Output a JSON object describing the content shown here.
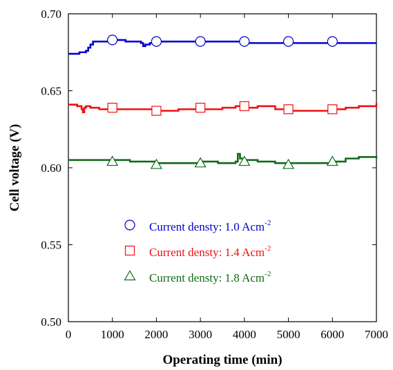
{
  "chart_data": {
    "type": "line",
    "title": "",
    "xlabel": "Operating time (min)",
    "ylabel": "Cell voltage (V)",
    "xlim": [
      0,
      7000
    ],
    "ylim": [
      0.5,
      0.7
    ],
    "xticks": [
      0,
      1000,
      2000,
      3000,
      4000,
      5000,
      6000,
      7000
    ],
    "xtick_labels": [
      "0",
      "1000",
      "2000",
      "3000",
      "4000",
      "5000",
      "6000",
      "7000"
    ],
    "yticks": [
      0.5,
      0.55,
      0.6,
      0.65,
      0.7
    ],
    "ytick_labels": [
      "0.50",
      "0.55",
      "0.60",
      "0.65",
      "0.70"
    ],
    "grid": false,
    "legend_position": "center-left",
    "series": [
      {
        "name": "Current densty: 1.0 Acm",
        "name_sup": "-2",
        "color": "#0000cc",
        "marker": "circle",
        "x": [
          0,
          250,
          400,
          450,
          500,
          560,
          700,
          1000,
          1300,
          1650,
          1700,
          1750,
          1850,
          2000,
          2500,
          3000,
          3500,
          4000,
          4500,
          5000,
          5500,
          6000,
          6500,
          7000
        ],
        "y": [
          0.674,
          0.675,
          0.676,
          0.678,
          0.68,
          0.682,
          0.682,
          0.683,
          0.682,
          0.681,
          0.679,
          0.68,
          0.681,
          0.682,
          0.682,
          0.682,
          0.682,
          0.681,
          0.681,
          0.681,
          0.681,
          0.681,
          0.681,
          0.681
        ],
        "marker_x": [
          1000,
          2000,
          3000,
          4000,
          5000,
          6000
        ],
        "marker_y": [
          0.683,
          0.682,
          0.682,
          0.682,
          0.682,
          0.682
        ]
      },
      {
        "name": "Current densty: 1.4 Acm",
        "name_sup": "-2",
        "color": "#ee1111",
        "marker": "square",
        "x": [
          0,
          200,
          300,
          330,
          360,
          400,
          500,
          700,
          1000,
          1500,
          2000,
          2500,
          3000,
          3500,
          3800,
          4000,
          4300,
          4700,
          5000,
          5500,
          6000,
          6300,
          6600,
          7000
        ],
        "y": [
          0.641,
          0.64,
          0.638,
          0.636,
          0.639,
          0.64,
          0.639,
          0.638,
          0.638,
          0.638,
          0.637,
          0.638,
          0.638,
          0.639,
          0.64,
          0.639,
          0.64,
          0.638,
          0.637,
          0.637,
          0.638,
          0.639,
          0.64,
          0.642
        ],
        "marker_x": [
          1000,
          2000,
          3000,
          4000,
          5000,
          6000
        ],
        "marker_y": [
          0.639,
          0.637,
          0.639,
          0.64,
          0.638,
          0.638
        ]
      },
      {
        "name": "Current densty: 1.8 Acm",
        "name_sup": "-2",
        "color": "#0f6b1a",
        "marker": "triangle",
        "x": [
          0,
          300,
          600,
          1000,
          1400,
          1700,
          2000,
          2500,
          3000,
          3400,
          3700,
          3800,
          3850,
          3900,
          4000,
          4300,
          4700,
          5000,
          5500,
          6000,
          6300,
          6600,
          7000
        ],
        "y": [
          0.605,
          0.605,
          0.605,
          0.605,
          0.604,
          0.604,
          0.603,
          0.603,
          0.604,
          0.603,
          0.603,
          0.604,
          0.609,
          0.606,
          0.605,
          0.604,
          0.603,
          0.603,
          0.603,
          0.604,
          0.606,
          0.607,
          0.606
        ],
        "marker_x": [
          1000,
          2000,
          3000,
          4000,
          5000,
          6000
        ],
        "marker_y": [
          0.604,
          0.602,
          0.603,
          0.604,
          0.602,
          0.604
        ]
      }
    ]
  }
}
